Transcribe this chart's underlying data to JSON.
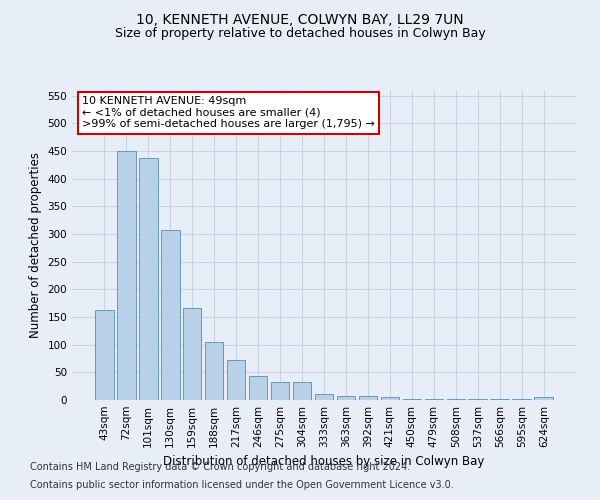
{
  "title": "10, KENNETH AVENUE, COLWYN BAY, LL29 7UN",
  "subtitle": "Size of property relative to detached houses in Colwyn Bay",
  "xlabel": "Distribution of detached houses by size in Colwyn Bay",
  "ylabel": "Number of detached properties",
  "categories": [
    "43sqm",
    "72sqm",
    "101sqm",
    "130sqm",
    "159sqm",
    "188sqm",
    "217sqm",
    "246sqm",
    "275sqm",
    "304sqm",
    "333sqm",
    "363sqm",
    "392sqm",
    "421sqm",
    "450sqm",
    "479sqm",
    "508sqm",
    "537sqm",
    "566sqm",
    "595sqm",
    "624sqm"
  ],
  "values": [
    163,
    450,
    438,
    308,
    167,
    105,
    73,
    44,
    32,
    32,
    10,
    8,
    8,
    5,
    2,
    2,
    2,
    2,
    2,
    2,
    5
  ],
  "bar_color": "#b8d0e8",
  "bar_edge_color": "#6699bb",
  "ylim": [
    0,
    560
  ],
  "yticks": [
    0,
    50,
    100,
    150,
    200,
    250,
    300,
    350,
    400,
    450,
    500,
    550
  ],
  "annotation_text": "10 KENNETH AVENUE: 49sqm\n← <1% of detached houses are smaller (4)\n>99% of semi-detached houses are larger (1,795) →",
  "annotation_box_facecolor": "#ffffff",
  "annotation_box_edgecolor": "#cc0000",
  "footer_line1": "Contains HM Land Registry data © Crown copyright and database right 2024.",
  "footer_line2": "Contains public sector information licensed under the Open Government Licence v3.0.",
  "background_color": "#e8eef8",
  "plot_bg_color": "#e8eef8",
  "grid_color": "#c8d4e4",
  "title_fontsize": 10,
  "subtitle_fontsize": 9,
  "axis_label_fontsize": 8.5,
  "tick_fontsize": 7.5,
  "annotation_fontsize": 8,
  "footer_fontsize": 7
}
